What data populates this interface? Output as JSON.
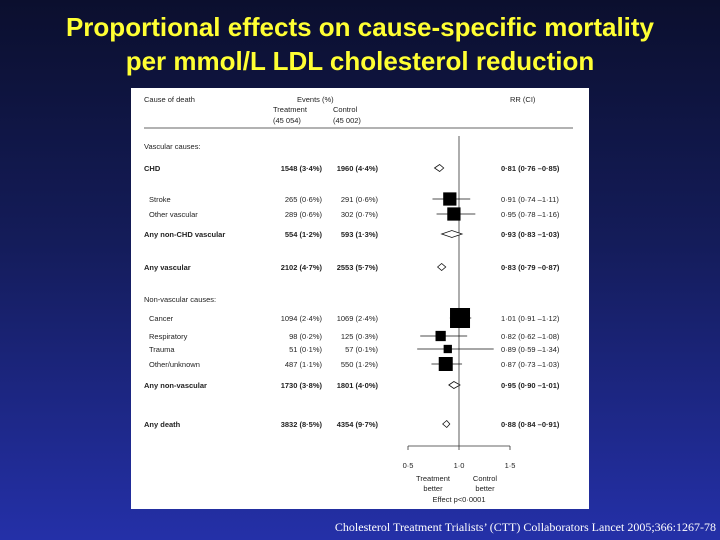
{
  "slide": {
    "title_line1": "Proportional effects on cause-specific mortality",
    "title_line2": "per mmol/L LDL cholesterol reduction",
    "citation": "Cholesterol Treatment Trialists’ (CTT) Collaborators  Lancet 2005;366:1267-78"
  },
  "colors": {
    "title": "#ffff33",
    "background_top": "#0b0f2e",
    "background_bottom": "#2430a8",
    "panel": "#ffffff"
  },
  "chart_data": {
    "type": "forest",
    "headers": {
      "cause": "Cause of death",
      "events": "Events (%)",
      "treatment": "Treatment",
      "control": "Control",
      "treatment_n": "(45 054)",
      "control_n": "(45 002)",
      "rr": "RR (CI)"
    },
    "sections": [
      "Vascular causes:",
      "Non-vascular causes:"
    ],
    "rows": [
      {
        "label": "CHD",
        "treatment": "1548 (3·4%)",
        "control": "1960 (4·4%)",
        "rr_text": "0·81 (0·76 –0·85)",
        "rr": 0.81,
        "lo": 0.76,
        "hi": 0.85,
        "kind": "diamond",
        "bold": true
      },
      {
        "label": "Stroke",
        "treatment": "265 (0·6%)",
        "control": "291 (0·6%)",
        "rr_text": "0·91 (0·74 –1·11)",
        "rr": 0.91,
        "lo": 0.74,
        "hi": 1.11,
        "kind": "square",
        "weight": 0.55,
        "bold": false
      },
      {
        "label": "Other vascular",
        "treatment": "289 (0·6%)",
        "control": "302 (0·7%)",
        "rr_text": "0·95 (0·78 –1·16)",
        "rr": 0.95,
        "lo": 0.78,
        "hi": 1.16,
        "kind": "square",
        "weight": 0.55,
        "bold": false
      },
      {
        "label": "Any non-CHD vascular",
        "treatment": "554 (1·2%)",
        "control": "593 (1·3%)",
        "rr_text": "0·93 (0·83 –1·03)",
        "rr": 0.93,
        "lo": 0.83,
        "hi": 1.03,
        "kind": "diamond",
        "bold": true
      },
      {
        "label": "Any vascular",
        "treatment": "2102 (4·7%)",
        "control": "2553 (5·7%)",
        "rr_text": "0·83 (0·79 –0·87)",
        "rr": 0.83,
        "lo": 0.79,
        "hi": 0.87,
        "kind": "diamond",
        "bold": true
      },
      {
        "label": "Cancer",
        "treatment": "1094 (2·4%)",
        "control": "1069 (2·4%)",
        "rr_text": "1·01 (0·91 –1·12)",
        "rr": 1.01,
        "lo": 0.91,
        "hi": 1.12,
        "kind": "square",
        "weight": 1.0,
        "bold": false
      },
      {
        "label": "Respiratory",
        "treatment": "98 (0·2%)",
        "control": "125 (0·3%)",
        "rr_text": "0·82 (0·62 –1·08)",
        "rr": 0.82,
        "lo": 0.62,
        "hi": 1.08,
        "kind": "square",
        "weight": 0.35,
        "bold": false
      },
      {
        "label": "Trauma",
        "treatment": "51 (0·1%)",
        "control": "57 (0·1%)",
        "rr_text": "0·89 (0·59 –1·34)",
        "rr": 0.89,
        "lo": 0.59,
        "hi": 1.34,
        "kind": "square",
        "weight": 0.22,
        "bold": false
      },
      {
        "label": "Other/unknown",
        "treatment": "487 (1·1%)",
        "control": "550 (1·2%)",
        "rr_text": "0·87 (0·73 –1·03)",
        "rr": 0.87,
        "lo": 0.73,
        "hi": 1.03,
        "kind": "square",
        "weight": 0.6,
        "bold": false
      },
      {
        "label": "Any non-vascular",
        "treatment": "1730 (3·8%)",
        "control": "1801 (4·0%)",
        "rr_text": "0·95 (0·90 –1·01)",
        "rr": 0.95,
        "lo": 0.9,
        "hi": 1.01,
        "kind": "diamond",
        "bold": true
      },
      {
        "label": "Any death",
        "treatment": "3832 (8·5%)",
        "control": "4354 (9·7%)",
        "rr_text": "0·88 (0·84 –0·91)",
        "rr": 0.88,
        "lo": 0.84,
        "hi": 0.91,
        "kind": "diamond",
        "bold": true
      }
    ],
    "x_ticks": [
      "0·5",
      "1·0",
      "1·5"
    ],
    "x_tick_values": [
      0.5,
      1.0,
      1.5
    ],
    "xlim": [
      0.5,
      1.5
    ],
    "axis_labels": {
      "treatment_better_1": "Treatment",
      "treatment_better_2": "better",
      "control_better_1": "Control",
      "control_better_2": "better",
      "effect": "Effect p<0·0001"
    }
  }
}
